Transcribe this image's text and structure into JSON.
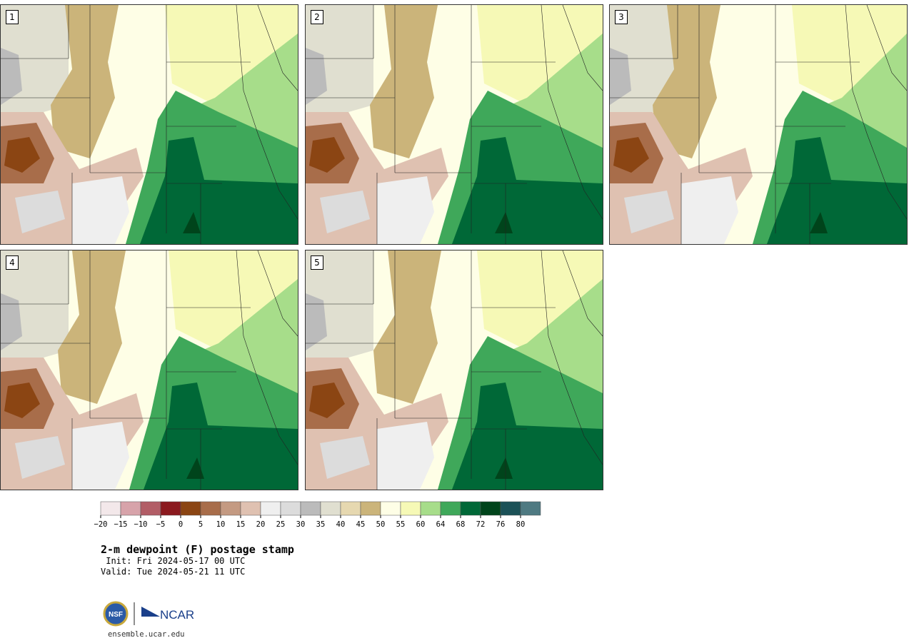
{
  "panels": [
    {
      "label": "1",
      "variant": 0
    },
    {
      "label": "2",
      "variant": 1
    },
    {
      "label": "3",
      "variant": 2
    },
    {
      "label": "4",
      "variant": 3
    },
    {
      "label": "5",
      "variant": 4
    }
  ],
  "colorbar": {
    "ticks": [
      "−20",
      "−15",
      "−10",
      "−5",
      "0",
      "5",
      "10",
      "15",
      "20",
      "25",
      "30",
      "35",
      "40",
      "45",
      "50",
      "55",
      "60",
      "64",
      "68",
      "72",
      "76",
      "80"
    ],
    "colors": [
      "#f3e8ea",
      "#d7a3aa",
      "#b25d66",
      "#8b1a1f",
      "#8b4513",
      "#a86d4a",
      "#c49a82",
      "#dfc1b1",
      "#efefef",
      "#dcdcdc",
      "#bbbbbb",
      "#e0dfd0",
      "#e6d8b0",
      "#cbb47a",
      "#fefee6",
      "#f6f9b6",
      "#a7dd8a",
      "#3fa85a",
      "#006837",
      "#00441b",
      "#1b5157",
      "#4f7a82"
    ]
  },
  "title": "2-m dewpoint (F) postage stamp",
  "init": " Init: Fri 2024-05-17 00 UTC",
  "valid": "Valid: Tue 2024-05-21 11 UTC",
  "logo": {
    "nsf": "NSF",
    "ncar": "NCAR"
  },
  "url": "ensemble.ucar.edu"
}
